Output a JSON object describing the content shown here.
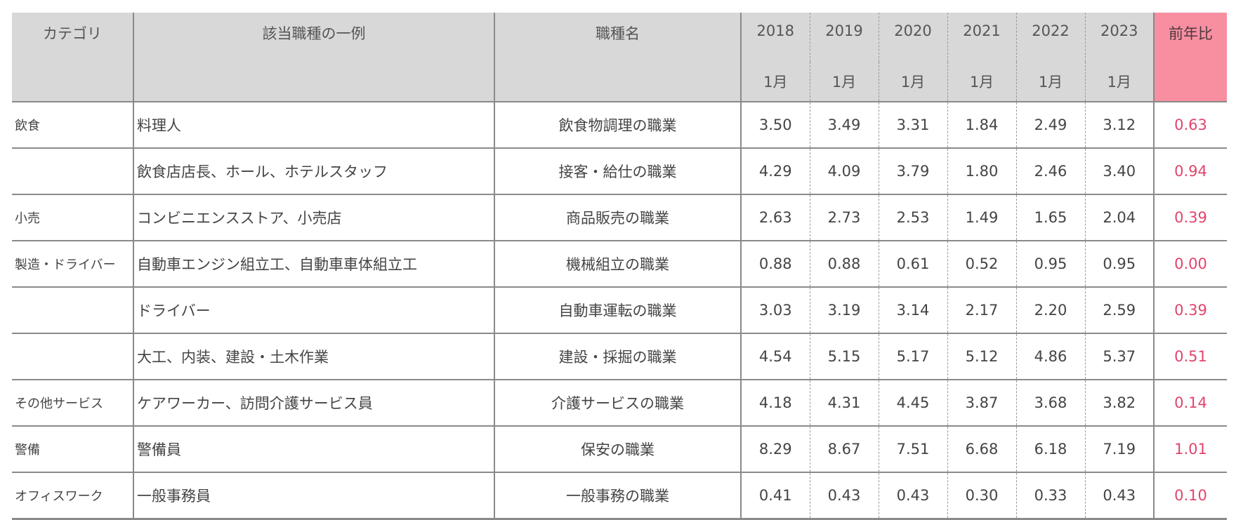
{
  "chart_data": {
    "type": "table",
    "columns": {
      "category": "カテゴリ",
      "example": "該当職種の一例",
      "job": "職種名",
      "years": [
        "2018",
        "2019",
        "2020",
        "2021",
        "2022",
        "2023"
      ],
      "month": "1月",
      "yoy": "前年比"
    },
    "rows": [
      {
        "category": "飲食",
        "example": "料理人",
        "job": "飲食物調理の職業",
        "values": [
          "3.50",
          "3.49",
          "3.31",
          "1.84",
          "2.49",
          "3.12"
        ],
        "yoy": "0.63"
      },
      {
        "category": "",
        "example": "飲食店店長、ホール、ホテルスタッフ",
        "job": "接客・給仕の職業",
        "values": [
          "4.29",
          "4.09",
          "3.79",
          "1.80",
          "2.46",
          "3.40"
        ],
        "yoy": "0.94"
      },
      {
        "category": "小売",
        "example": "コンビニエンスストア、小売店",
        "job": "商品販売の職業",
        "values": [
          "2.63",
          "2.73",
          "2.53",
          "1.49",
          "1.65",
          "2.04"
        ],
        "yoy": "0.39"
      },
      {
        "category": "製造・ドライバー",
        "example": "自動車エンジン組立工、自動車車体組立工",
        "job": "機械組立の職業",
        "values": [
          "0.88",
          "0.88",
          "0.61",
          "0.52",
          "0.95",
          "0.95"
        ],
        "yoy": "0.00"
      },
      {
        "category": "",
        "example": "ドライバー",
        "job": "自動車運転の職業",
        "values": [
          "3.03",
          "3.19",
          "3.14",
          "2.17",
          "2.20",
          "2.59"
        ],
        "yoy": "0.39"
      },
      {
        "category": "",
        "example": "大工、内装、建設・土木作業",
        "job": "建設・採掘の職業",
        "values": [
          "4.54",
          "5.15",
          "5.17",
          "5.12",
          "4.86",
          "5.37"
        ],
        "yoy": "0.51"
      },
      {
        "category": "その他サービス",
        "example": "ケアワーカー、訪問介護サービス員",
        "job": "介護サービスの職業",
        "values": [
          "4.18",
          "4.31",
          "4.45",
          "3.87",
          "3.68",
          "3.82"
        ],
        "yoy": "0.14"
      },
      {
        "category": "警備",
        "example": "警備員",
        "job": "保安の職業",
        "values": [
          "8.29",
          "8.67",
          "7.51",
          "6.68",
          "6.18",
          "7.19"
        ],
        "yoy": "1.01"
      },
      {
        "category": "オフィスワーク",
        "example": "一般事務員",
        "job": "一般事務の職業",
        "values": [
          "0.41",
          "0.43",
          "0.43",
          "0.30",
          "0.33",
          "0.43"
        ],
        "yoy": "0.10"
      }
    ],
    "colors": {
      "header_bg": "#d8d8d8",
      "yoy_header_bg": "#f78fa1",
      "yoy_text": "#e2446a",
      "rule": "#8a8a8a"
    }
  }
}
